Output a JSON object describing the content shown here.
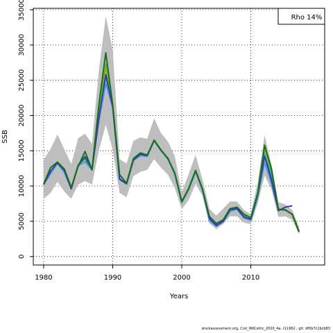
{
  "chart_data": {
    "type": "line",
    "xlabel": "Years",
    "ylabel": "SSB",
    "legend": {
      "text": "Rho 14%",
      "placement": "top-right"
    },
    "xlim": [
      1978.5,
      2020.7
    ],
    "ylim": [
      -1200,
      35200
    ],
    "x_ticks": [
      1980,
      1990,
      2000,
      2010
    ],
    "y_ticks": [
      0,
      5000,
      10000,
      15000,
      20000,
      25000,
      30000,
      35000
    ],
    "grid": "dotted",
    "band": {
      "x": [
        1980,
        1981,
        1982,
        1983,
        1984,
        1985,
        1986,
        1987,
        1988,
        1989,
        1990,
        1991,
        1992,
        1993,
        1994,
        1995,
        1996,
        1997,
        1998,
        1999,
        2000,
        2001,
        2002,
        2003,
        2004,
        2005,
        2006,
        2007,
        2008,
        2009,
        2010,
        2011,
        2012,
        2013,
        2014,
        2015,
        2016,
        2017
      ],
      "lower": [
        8200,
        9000,
        10600,
        9200,
        8200,
        10200,
        10700,
        10200,
        15000,
        18700,
        15100,
        9000,
        8400,
        11400,
        12000,
        12300,
        13800,
        12600,
        11600,
        9700,
        6700,
        8000,
        10300,
        8600,
        4700,
        3900,
        4600,
        5700,
        5700,
        4800,
        4600,
        7500,
        11500,
        9500,
        5600,
        5700,
        5200,
        3100
      ],
      "upper": [
        13700,
        15300,
        17300,
        15200,
        13100,
        16800,
        17400,
        16000,
        26400,
        34100,
        29300,
        13800,
        13200,
        16400,
        16900,
        16700,
        19600,
        17500,
        16300,
        14200,
        9100,
        11700,
        14400,
        11000,
        6800,
        5800,
        6800,
        7800,
        7800,
        6600,
        6000,
        10600,
        17200,
        13000,
        7700,
        7400,
        6600,
        4100
      ]
    },
    "series": [
      {
        "color": "#1a6e1a",
        "x": [
          1980,
          1981,
          1982,
          1983,
          1984,
          1985,
          1986,
          1987,
          1988,
          1989,
          1990,
          1991,
          1992,
          1993,
          1994,
          1995,
          1996,
          1997,
          1998,
          1999,
          2000,
          2001,
          2002,
          2003,
          2004,
          2005,
          2006,
          2007,
          2008,
          2009,
          2010,
          2011,
          2012,
          2013,
          2014,
          2015,
          2016,
          2017
        ],
        "values": [
          10300,
          12600,
          13400,
          12400,
          9800,
          12800,
          14900,
          12300,
          21500,
          28900,
          21500,
          11600,
          10400,
          13900,
          14700,
          14400,
          16500,
          15100,
          13900,
          11800,
          7800,
          9600,
          12200,
          9600,
          5700,
          4700,
          5200,
          6800,
          7000,
          6000,
          5500,
          9000,
          15800,
          12400,
          6700,
          6600,
          6000,
          3500
        ]
      },
      {
        "color": "#3b37b5",
        "x": [
          1980,
          1981,
          1982,
          1983,
          1984,
          1985,
          1986,
          1987,
          1988,
          1989,
          1990,
          1991,
          1992,
          1993,
          1994,
          1995,
          1996,
          1997,
          1998,
          1999,
          2000,
          2001,
          2002,
          2003,
          2004,
          2005,
          2006,
          2007,
          2008,
          2009,
          2010,
          2011,
          2012,
          2013,
          2014,
          2015,
          2016
        ],
        "values": [
          10200,
          12100,
          13300,
          12200,
          9600,
          12900,
          14200,
          12300,
          19600,
          25800,
          21200,
          11000,
          10300,
          13700,
          14500,
          14300,
          16500,
          15100,
          13900,
          11800,
          7800,
          9600,
          12200,
          9600,
          5400,
          4400,
          5000,
          6600,
          6800,
          5600,
          5300,
          8800,
          14200,
          10800,
          6500,
          7000,
          7200
        ]
      },
      {
        "color": "#4aa3d8",
        "x": [
          1980,
          1981,
          1982,
          1983,
          1984,
          1985,
          1986,
          1987,
          1988,
          1989,
          1990,
          1991,
          1992,
          1993,
          1994,
          1995,
          1996,
          1997,
          1998,
          1999,
          2000,
          2001,
          2002,
          2003,
          2004,
          2005,
          2006,
          2007,
          2008,
          2009,
          2010,
          2011,
          2012,
          2013,
          2014,
          2015
        ],
        "values": [
          10200,
          11700,
          13200,
          11900,
          9600,
          12900,
          13400,
          12300,
          19200,
          24500,
          21100,
          10900,
          10300,
          13600,
          14300,
          14200,
          16400,
          15000,
          13800,
          11700,
          7600,
          9500,
          12000,
          9400,
          5100,
          4300,
          4900,
          6400,
          6700,
          5500,
          5100,
          8400,
          13300,
          10300,
          6600,
          6700
        ]
      },
      {
        "color": "#21a383",
        "x": [
          1980,
          1981,
          1982,
          1983,
          1984,
          1985,
          1986,
          1987,
          1988,
          1989,
          1990,
          1991,
          1992,
          1993,
          1994,
          1995,
          1996,
          1997,
          1998,
          1999,
          2000,
          2001,
          2002,
          2003,
          2004,
          2005,
          2006,
          2007,
          2008,
          2009,
          2010,
          2011,
          2012,
          2013,
          2014
        ],
        "values": [
          10200,
          11900,
          13300,
          12000,
          9600,
          13000,
          13900,
          12300,
          19800,
          25500,
          21200,
          11000,
          10300,
          13700,
          14400,
          14300,
          16400,
          15000,
          13900,
          11700,
          7700,
          9600,
          12100,
          9500,
          5300,
          4500,
          5000,
          6500,
          6800,
          5700,
          5200,
          8700,
          14500,
          11500,
          6700
        ]
      },
      {
        "color": "#6ab52f",
        "x": [
          1980,
          1981,
          1982,
          1983,
          1984,
          1985,
          1986,
          1987,
          1988,
          1989,
          1990,
          1991,
          1992,
          1993,
          1994,
          1995,
          1996,
          1997,
          1998,
          1999,
          2000,
          2001,
          2002,
          2003,
          2004,
          2005,
          2006,
          2007,
          2008,
          2009,
          2010,
          2011,
          2012,
          2013
        ],
        "values": [
          10200,
          11900,
          13300,
          12100,
          9700,
          13000,
          14200,
          12300,
          20700,
          27300,
          21300,
          11100,
          10300,
          13800,
          14500,
          14300,
          16500,
          15100,
          13900,
          11800,
          7800,
          9700,
          12200,
          9600,
          5500,
          4600,
          5200,
          6700,
          6900,
          5900,
          5400,
          8900,
          15400,
          12200
        ]
      },
      {
        "color": "#b3a23a",
        "x": [
          1980,
          1981,
          1982,
          1983,
          1984,
          1985,
          1986,
          1987,
          1988,
          1989,
          1990,
          1991,
          1992,
          1993,
          1994,
          1995,
          1996,
          1997,
          1998,
          1999,
          2000,
          2001,
          2002,
          2003,
          2004,
          2005,
          2006,
          2007,
          2008,
          2009,
          2010,
          2011,
          2012
        ],
        "values": [
          10200,
          11800,
          13300,
          12000,
          9600,
          13000,
          13500,
          12300,
          20100,
          26800,
          21200,
          11000,
          10300,
          13700,
          14400,
          14300,
          16500,
          15100,
          13800,
          11700,
          7700,
          9600,
          12100,
          9500,
          5400,
          4500,
          5100,
          6600,
          6800,
          5800,
          5300,
          8800,
          15100
        ]
      },
      {
        "color": "#000000",
        "dashed": true,
        "x": [
          2014,
          2015,
          2016,
          2017
        ],
        "values": [
          6700,
          6600,
          6000,
          3500
        ]
      }
    ]
  },
  "footer": "stockassessment.org, Cod_WKCeltic_2020_4a, r11962 , git: df0b7c1bcb83"
}
